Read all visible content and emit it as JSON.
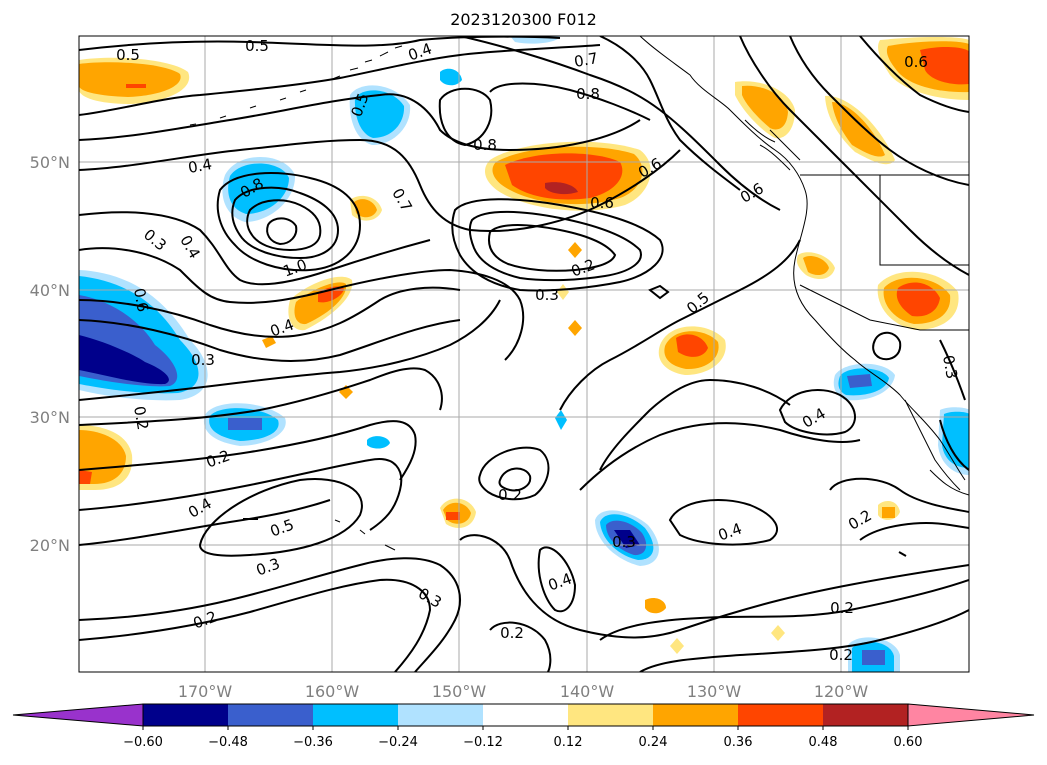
{
  "title": "2023120300 F012",
  "map": {
    "latitude_labels": [
      "50°N",
      "40°N",
      "30°N",
      "20°N"
    ],
    "longitude_labels": [
      "170°W",
      "160°W",
      "150°W",
      "140°W",
      "130°W",
      "120°W"
    ],
    "contour_labels": [
      "0.5",
      "0.5",
      "0.4",
      "0.7",
      "0.8",
      "0.8",
      "0.5",
      "0.4",
      "0.8",
      "0.7",
      "0.6",
      "0.6",
      "0.6",
      "0.6",
      "0.3",
      "0.4",
      "1.0",
      "0.2",
      "0.3",
      "0.6",
      "0.4",
      "0.3",
      "0.5",
      "0.3",
      "0.2",
      "0.4",
      "0.2",
      "0.4",
      "0.5",
      "0.3",
      "0.2",
      "0.3",
      "0.2",
      "0.3",
      "0.4",
      "0.4",
      "0.2",
      "0.2",
      "0.2",
      "0.2"
    ]
  },
  "colorbar": {
    "tick_labels": [
      "−0.60",
      "−0.48",
      "−0.36",
      "−0.24",
      "−0.12",
      "0.12",
      "0.24",
      "0.36",
      "0.48",
      "0.60"
    ],
    "colors": [
      "#9932cc",
      "#00008b",
      "#3a5fcd",
      "#00bfff",
      "#b0e2ff",
      "#ffffff",
      "#ffe680",
      "#ffa500",
      "#ff4500",
      "#b22222",
      "#ff85a2"
    ]
  }
}
